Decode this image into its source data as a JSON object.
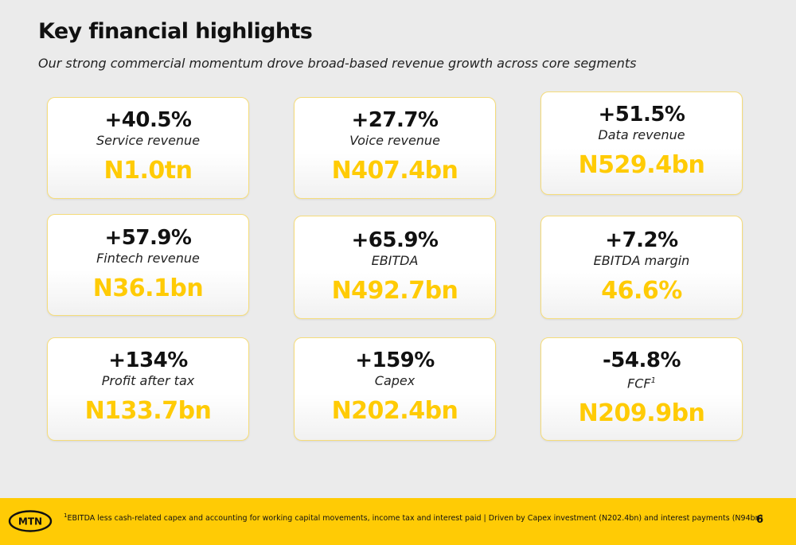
{
  "header": {
    "title": "Key financial highlights",
    "subtitle": "Our strong commercial momentum drove broad-based revenue growth across core segments"
  },
  "cards": [
    {
      "change": "+40.5%",
      "label": "Service revenue",
      "value": "N1.0tn"
    },
    {
      "change": "+27.7%",
      "label": "Voice revenue",
      "value": "N407.4bn"
    },
    {
      "change": "+51.5%",
      "label": "Data revenue",
      "value": "N529.4bn"
    },
    {
      "change": "+57.9%",
      "label": "Fintech revenue",
      "value": "N36.1bn"
    },
    {
      "change": "+65.9%",
      "label": "EBITDA",
      "value": "N492.7bn"
    },
    {
      "change": "+7.2%",
      "label": "EBITDA margin",
      "value": "46.6%"
    },
    {
      "change": "+134%",
      "label": "Profit after tax",
      "value": "N133.7bn"
    },
    {
      "change": "+159%",
      "label": "Capex",
      "value": "N202.4bn"
    },
    {
      "change": "-54.8%",
      "label": "FCF",
      "label_sup": "1",
      "value": "N209.9bn"
    }
  ],
  "footer": {
    "logo_text": "MTN",
    "footnote_marker": "1",
    "footnote_text": "EBITDA less cash-related capex and accounting for working capital movements, income tax and interest paid | Driven by Capex investment (N202.4bn) and interest payments (N94bn)",
    "page_number": "6"
  },
  "colors": {
    "accent": "#ffcb05",
    "background": "#ebebeb",
    "card_border": "#f5dc7a",
    "text": "#111111"
  }
}
